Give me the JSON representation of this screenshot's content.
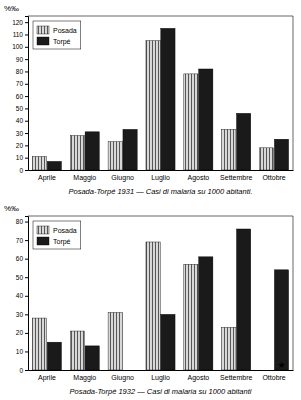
{
  "chart_data": [
    {
      "type": "bar",
      "title": "Posada-Torpé 1931 — Casi di malaria su 1000 abitanti.",
      "ylabel": "%‰",
      "categories": [
        "Aprile",
        "Maggio",
        "Giugno",
        "Luglio",
        "Agosto",
        "Settembre",
        "Ottobre"
      ],
      "series": [
        {
          "name": "Posada",
          "color": "#d8d8d8",
          "values": [
            11,
            28,
            23,
            105,
            78,
            33,
            18
          ]
        },
        {
          "name": "Torpé",
          "color": "#1a1a1a",
          "values": [
            7,
            31,
            33,
            115,
            82,
            46,
            25
          ]
        }
      ],
      "ylim": [
        0,
        125
      ],
      "yticks": [
        0,
        10,
        20,
        30,
        40,
        50,
        60,
        70,
        80,
        90,
        100,
        110,
        120
      ],
      "grid": false,
      "legend": "upper left"
    },
    {
      "type": "bar",
      "title": "Posada-Torpé 1932 — Casi di malaria su 1000 abitanti",
      "ylabel": "%‰",
      "categories": [
        "Aprile",
        "Maggio",
        "Giugno",
        "Luglio",
        "Agosto",
        "Settembre",
        "Ottobre"
      ],
      "series": [
        {
          "name": "Posada",
          "color": "#d8d8d8",
          "values": [
            28,
            21,
            31,
            69,
            57,
            23,
            0
          ]
        },
        {
          "name": "Torpé",
          "color": "#1a1a1a",
          "values": [
            15,
            13,
            0,
            30,
            61,
            76,
            54
          ]
        }
      ],
      "ylim": [
        0,
        83
      ],
      "yticks": [
        0,
        10,
        20,
        30,
        40,
        50,
        60,
        70,
        80
      ],
      "grid": false,
      "legend": "upper left",
      "annotations": [
        {
          "text": "★",
          "category": "Ottobre",
          "series": "Torpé"
        }
      ]
    }
  ]
}
